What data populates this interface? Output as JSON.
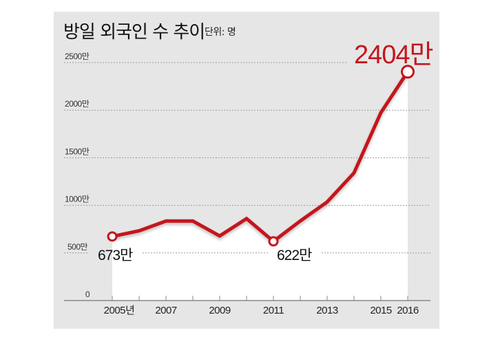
{
  "header": {
    "title": "방일 외국인 수 추이",
    "unit": "단위: 명"
  },
  "colors": {
    "line": "#c4161c",
    "panel": "#e6e6e6",
    "fill": "#ffffff",
    "grid": "#9a9a9a",
    "axis": "#888888"
  },
  "annotations": {
    "start": "673만",
    "low": "622만",
    "end": "2404만"
  },
  "chart_data": {
    "type": "line",
    "title": "방일 외국인 수 추이",
    "subtitle": "단위: 명",
    "xlabel": "",
    "ylabel": "",
    "x": [
      2005,
      2006,
      2007,
      2008,
      2009,
      2010,
      2011,
      2012,
      2013,
      2014,
      2015,
      2016
    ],
    "series": [
      {
        "name": "방일 외국인 수 (만명)",
        "values": [
          673,
          733,
          835,
          835,
          679,
          861,
          622,
          836,
          1036,
          1341,
          1974,
          2404
        ]
      }
    ],
    "x_tick_labels": [
      "2005년",
      "2007",
      "2009",
      "2011",
      "2013",
      "2015",
      "2016"
    ],
    "y_ticks": [
      0,
      500,
      1000,
      1500,
      2000,
      2500
    ],
    "y_tick_labels": [
      "0",
      "500만",
      "1000만",
      "1500만",
      "2000만",
      "2500만"
    ],
    "ylim": [
      0,
      2500
    ],
    "grid": true,
    "legend": "none",
    "annotated_points": [
      {
        "x": 2005,
        "label": "673만"
      },
      {
        "x": 2011,
        "label": "622만"
      },
      {
        "x": 2016,
        "label": "2404만"
      }
    ]
  }
}
